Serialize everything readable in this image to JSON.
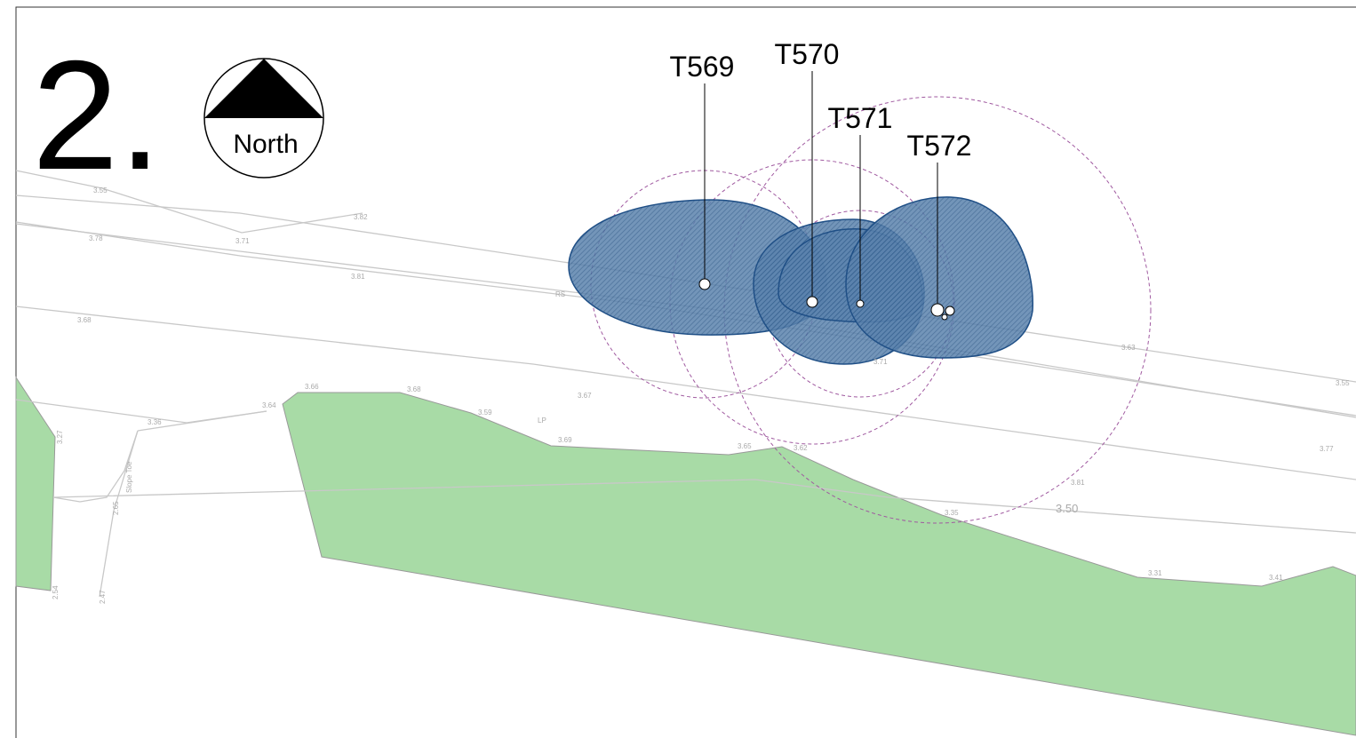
{
  "sheet_number": "2.",
  "north_arrow": "North",
  "trees": [
    {
      "label": "T569"
    },
    {
      "label": "T570"
    },
    {
      "label": "T571"
    },
    {
      "label": "T572"
    }
  ],
  "spot_levels": [
    "3.55",
    "3.78",
    "3.71",
    "3.82",
    "3.81",
    "3.68",
    "3.66",
    "3.68",
    "3.64",
    "3.36",
    "3.59",
    "3.67",
    "3.69",
    "3.65",
    "3.62",
    "3.71",
    "3.63",
    "3.55",
    "3.77",
    "3.81",
    "3.35",
    "3.50",
    "3.31",
    "3.41",
    "3.27",
    "2.54",
    "2.47",
    "2.65"
  ],
  "annotations": [
    "RS",
    "LP",
    "Slope Toe"
  ]
}
